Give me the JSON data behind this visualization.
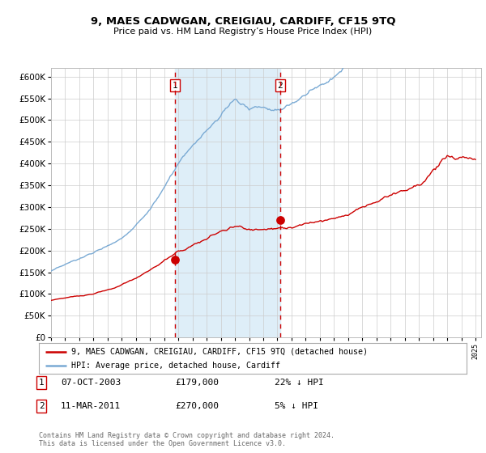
{
  "title": "9, MAES CADWGAN, CREIGIAU, CARDIFF, CF15 9TQ",
  "subtitle": "Price paid vs. HM Land Registry’s House Price Index (HPI)",
  "x_start_year": 1995,
  "x_end_year": 2025,
  "ylim": [
    0,
    620000
  ],
  "yticks": [
    0,
    50000,
    100000,
    150000,
    200000,
    250000,
    300000,
    350000,
    400000,
    450000,
    500000,
    550000,
    600000
  ],
  "transaction1_date": 2003.77,
  "transaction1_price": 179000,
  "transaction1_label": "1",
  "transaction1_display": "07-OCT-2003",
  "transaction1_price_display": "£179,000",
  "transaction1_hpi": "22% ↓ HPI",
  "transaction2_date": 2011.19,
  "transaction2_price": 270000,
  "transaction2_label": "2",
  "transaction2_display": "11-MAR-2011",
  "transaction2_price_display": "£270,000",
  "transaction2_hpi": "5% ↓ HPI",
  "hpi_color": "#7aaad4",
  "property_color": "#cc0000",
  "shading_color": "#deeef8",
  "dashed_line_color": "#cc0000",
  "background_color": "#ffffff",
  "grid_color": "#cccccc",
  "legend_label_property": "9, MAES CADWGAN, CREIGIAU, CARDIFF, CF15 9TQ (detached house)",
  "legend_label_hpi": "HPI: Average price, detached house, Cardiff",
  "footer_text": "Contains HM Land Registry data © Crown copyright and database right 2024.\nThis data is licensed under the Open Government Licence v3.0."
}
